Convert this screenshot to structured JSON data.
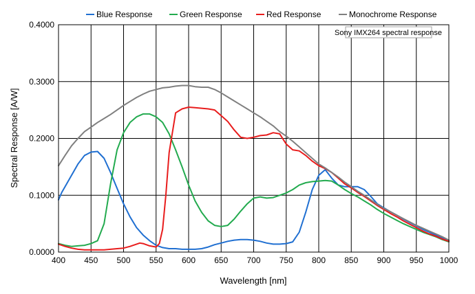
{
  "chart_data": {
    "type": "line",
    "xlabel": "Wavelength [nm]",
    "ylabel": "Spectral Response [A/W]",
    "xlim": [
      400,
      1000
    ],
    "ylim": [
      0,
      0.4
    ],
    "xticks": [
      400,
      450,
      500,
      550,
      600,
      650,
      700,
      750,
      800,
      850,
      900,
      950,
      1000
    ],
    "yticks": [
      0,
      0.1,
      0.2,
      0.3,
      0.4
    ],
    "ytick_labels": [
      "0.0000",
      "0.1000",
      "0.2000",
      "0.3000",
      "0.4000"
    ],
    "grid": true,
    "legend_position": "top",
    "annotation": "Sony IMX264 spectral response",
    "series": [
      {
        "name": "Blue Response",
        "color": "#1f6fd1",
        "x": [
          400,
          405,
          410,
          420,
          430,
          440,
          450,
          460,
          470,
          480,
          490,
          500,
          510,
          520,
          530,
          540,
          550,
          560,
          570,
          580,
          590,
          600,
          610,
          620,
          630,
          640,
          650,
          660,
          670,
          680,
          690,
          700,
          710,
          720,
          730,
          740,
          750,
          760,
          770,
          780,
          790,
          800,
          810,
          820,
          830,
          840,
          850,
          860,
          870,
          880,
          890,
          900,
          910,
          920,
          930,
          940,
          950,
          960,
          970,
          980,
          990,
          1000
        ],
        "y": [
          0.092,
          0.105,
          0.115,
          0.135,
          0.155,
          0.17,
          0.176,
          0.177,
          0.165,
          0.14,
          0.112,
          0.085,
          0.062,
          0.043,
          0.03,
          0.02,
          0.012,
          0.008,
          0.006,
          0.006,
          0.005,
          0.005,
          0.005,
          0.006,
          0.009,
          0.013,
          0.016,
          0.019,
          0.021,
          0.022,
          0.022,
          0.021,
          0.019,
          0.016,
          0.014,
          0.014,
          0.015,
          0.018,
          0.035,
          0.07,
          0.11,
          0.135,
          0.145,
          0.13,
          0.118,
          0.115,
          0.115,
          0.115,
          0.11,
          0.098,
          0.085,
          0.078,
          0.071,
          0.065,
          0.058,
          0.052,
          0.046,
          0.04,
          0.035,
          0.03,
          0.025,
          0.02
        ]
      },
      {
        "name": "Green Response",
        "color": "#22aa4e",
        "x": [
          400,
          410,
          420,
          430,
          440,
          450,
          460,
          470,
          480,
          490,
          500,
          510,
          520,
          530,
          540,
          550,
          560,
          570,
          580,
          590,
          600,
          610,
          620,
          630,
          640,
          650,
          660,
          670,
          680,
          690,
          700,
          710,
          720,
          730,
          740,
          750,
          760,
          770,
          780,
          790,
          800,
          810,
          820,
          830,
          840,
          850,
          860,
          870,
          880,
          890,
          900,
          910,
          920,
          930,
          940,
          950,
          960,
          970,
          980,
          990,
          1000
        ],
        "y": [
          0.015,
          0.012,
          0.01,
          0.011,
          0.012,
          0.015,
          0.02,
          0.05,
          0.12,
          0.18,
          0.21,
          0.228,
          0.238,
          0.243,
          0.243,
          0.238,
          0.228,
          0.208,
          0.18,
          0.15,
          0.118,
          0.09,
          0.07,
          0.055,
          0.047,
          0.045,
          0.047,
          0.058,
          0.072,
          0.085,
          0.095,
          0.097,
          0.095,
          0.096,
          0.1,
          0.104,
          0.11,
          0.118,
          0.122,
          0.124,
          0.125,
          0.126,
          0.125,
          0.118,
          0.11,
          0.103,
          0.097,
          0.09,
          0.083,
          0.075,
          0.068,
          0.062,
          0.056,
          0.05,
          0.045,
          0.04,
          0.035,
          0.031,
          0.027,
          0.022,
          0.018
        ]
      },
      {
        "name": "Red Response",
        "color": "#e81c1c",
        "x": [
          400,
          410,
          420,
          430,
          440,
          450,
          460,
          470,
          480,
          490,
          500,
          510,
          520,
          525,
          530,
          540,
          550,
          555,
          560,
          565,
          570,
          580,
          590,
          600,
          610,
          620,
          630,
          640,
          650,
          660,
          670,
          680,
          690,
          700,
          710,
          720,
          730,
          740,
          750,
          760,
          770,
          780,
          790,
          800,
          810,
          820,
          830,
          840,
          850,
          860,
          870,
          880,
          890,
          900,
          910,
          920,
          930,
          940,
          950,
          960,
          970,
          980,
          990,
          1000
        ],
        "y": [
          0.014,
          0.01,
          0.007,
          0.005,
          0.004,
          0.004,
          0.004,
          0.004,
          0.005,
          0.006,
          0.007,
          0.01,
          0.014,
          0.016,
          0.015,
          0.011,
          0.009,
          0.015,
          0.04,
          0.1,
          0.175,
          0.245,
          0.252,
          0.255,
          0.254,
          0.253,
          0.252,
          0.25,
          0.24,
          0.23,
          0.215,
          0.202,
          0.2,
          0.202,
          0.205,
          0.206,
          0.21,
          0.208,
          0.19,
          0.18,
          0.178,
          0.17,
          0.16,
          0.152,
          0.147,
          0.14,
          0.13,
          0.12,
          0.113,
          0.105,
          0.098,
          0.09,
          0.082,
          0.075,
          0.068,
          0.062,
          0.055,
          0.049,
          0.043,
          0.037,
          0.032,
          0.028,
          0.023,
          0.019
        ]
      },
      {
        "name": "Monochrome Response",
        "color": "#7f7f7f",
        "x": [
          400,
          410,
          420,
          430,
          440,
          450,
          460,
          470,
          480,
          490,
          500,
          510,
          520,
          530,
          540,
          550,
          560,
          570,
          580,
          590,
          600,
          610,
          620,
          630,
          640,
          650,
          660,
          670,
          680,
          690,
          700,
          710,
          720,
          730,
          740,
          750,
          760,
          770,
          780,
          790,
          800,
          810,
          820,
          830,
          840,
          850,
          860,
          870,
          880,
          890,
          900,
          910,
          920,
          930,
          940,
          950,
          960,
          970,
          980,
          990,
          1000
        ],
        "y": [
          0.152,
          0.17,
          0.187,
          0.2,
          0.212,
          0.22,
          0.228,
          0.235,
          0.242,
          0.25,
          0.258,
          0.265,
          0.272,
          0.278,
          0.283,
          0.286,
          0.289,
          0.29,
          0.292,
          0.293,
          0.293,
          0.291,
          0.29,
          0.29,
          0.286,
          0.28,
          0.273,
          0.266,
          0.259,
          0.252,
          0.245,
          0.238,
          0.23,
          0.222,
          0.212,
          0.204,
          0.195,
          0.185,
          0.175,
          0.165,
          0.155,
          0.148,
          0.14,
          0.132,
          0.123,
          0.115,
          0.107,
          0.1,
          0.092,
          0.084,
          0.077,
          0.071,
          0.065,
          0.059,
          0.053,
          0.047,
          0.042,
          0.037,
          0.032,
          0.027,
          0.021
        ]
      }
    ]
  }
}
